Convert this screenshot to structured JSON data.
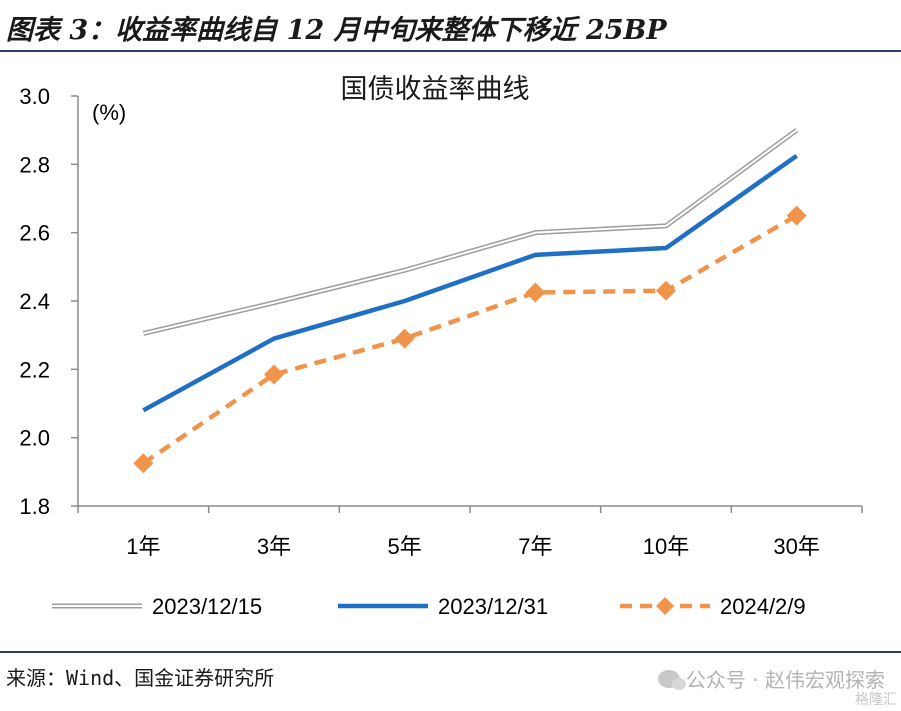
{
  "figure_title": "图表 3：收益率曲线自 12 月中旬来整体下移近 25BP",
  "source_text": "来源：Wind、国金证券研究所",
  "watermark": {
    "text": "公众号 · 赵伟宏观探索",
    "corner": "格隆汇"
  },
  "chart_data": {
    "type": "line",
    "title": "国债收益率曲线",
    "unit_label": "(%)",
    "categories": [
      "1年",
      "3年",
      "5年",
      "7年",
      "10年",
      "30年"
    ],
    "ylim": [
      1.8,
      3.0
    ],
    "yticks": [
      "1.8",
      "2.0",
      "2.2",
      "2.4",
      "2.6",
      "2.8",
      "3.0"
    ],
    "grid": false,
    "legend_position": "bottom",
    "series": [
      {
        "name": "2023/12/15",
        "values": [
          2.305,
          2.395,
          2.49,
          2.6,
          2.62,
          2.9
        ],
        "color": "#9e9e9e",
        "style": "double"
      },
      {
        "name": "2023/12/31",
        "values": [
          2.08,
          2.29,
          2.4,
          2.535,
          2.555,
          2.825
        ],
        "color": "#1f6fc5",
        "style": "solid"
      },
      {
        "name": "2024/2/9",
        "values": [
          1.925,
          2.185,
          2.29,
          2.425,
          2.43,
          2.65
        ],
        "color": "#f0944b",
        "style": "dashed-diamond"
      }
    ]
  }
}
